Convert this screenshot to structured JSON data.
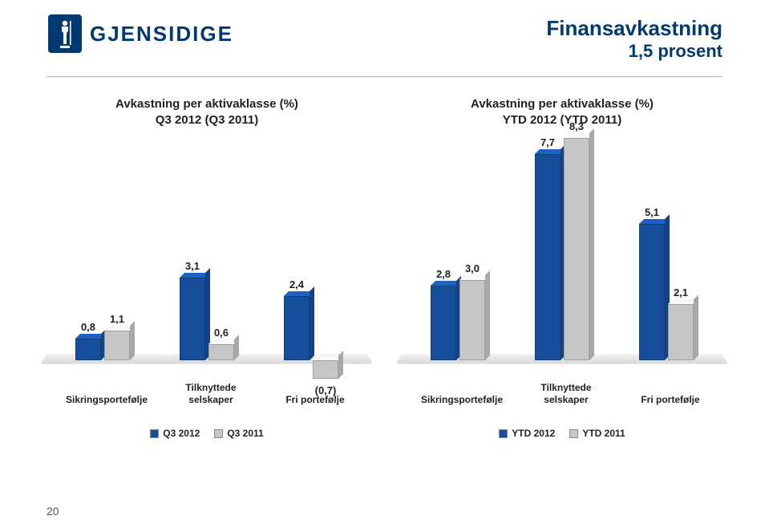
{
  "logo": {
    "word": "GJENSIDIGE"
  },
  "title": {
    "line1": "Finansavkastning",
    "line2": "1,5 prosent"
  },
  "colors": {
    "brand": "#003a70",
    "series_a": "#164e9c",
    "series_b": "#c6c6c6",
    "platform": "#e0e0e0",
    "text": "#222222"
  },
  "page_number": "20",
  "scale": {
    "max": 9,
    "pixels": 300
  },
  "chart_left": {
    "title_l1": "Avkastning per aktivaklasse (%)",
    "title_l2": "Q3 2012 (Q3 2011)",
    "legend_a": "Q3 2012",
    "legend_b": "Q3 2011",
    "categories": [
      {
        "key": "sikring",
        "label_l1": "Sikringsportefølje",
        "label_l2": "",
        "a": 0.8,
        "a_str": "0,8",
        "b": 1.1,
        "b_str": "1,1"
      },
      {
        "key": "tilknyttede",
        "label_l1": "Tilknyttede",
        "label_l2": "selskaper",
        "a": 3.1,
        "a_str": "3,1",
        "b": 0.6,
        "b_str": "0,6"
      },
      {
        "key": "fri",
        "label_l1": "Fri portefølje",
        "label_l2": "",
        "a": 2.4,
        "a_str": "2,4",
        "b": -0.7,
        "b_str": "(0,7)"
      }
    ]
  },
  "chart_right": {
    "title_l1": "Avkastning per aktivaklasse (%)",
    "title_l2": "YTD 2012 (YTD 2011)",
    "legend_a": "YTD 2012",
    "legend_b": "YTD 2011",
    "categories": [
      {
        "key": "sikring",
        "label_l1": "Sikringsportefølje",
        "label_l2": "",
        "a": 2.8,
        "a_str": "2,8",
        "b": 3.0,
        "b_str": "3,0"
      },
      {
        "key": "tilknyttede",
        "label_l1": "Tilknyttede",
        "label_l2": "selskaper",
        "a": 7.7,
        "a_str": "7,7",
        "b": 8.3,
        "b_str": "8,3"
      },
      {
        "key": "fri",
        "label_l1": "Fri portefølje",
        "label_l2": "",
        "a": 5.1,
        "a_str": "5,1",
        "b": 2.1,
        "b_str": "2,1"
      }
    ]
  }
}
